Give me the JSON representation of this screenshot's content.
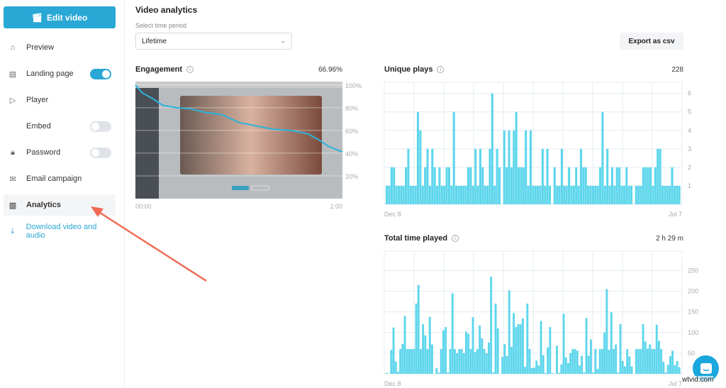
{
  "sidebar": {
    "edit_button": "Edit video",
    "items": [
      {
        "label": "Preview",
        "icon": "home-icon"
      },
      {
        "label": "Landing page",
        "icon": "page-icon",
        "toggle": true
      },
      {
        "label": "Player",
        "icon": "play-icon"
      },
      {
        "label": "Embed",
        "icon": "code-icon",
        "toggle": false
      },
      {
        "label": "Password",
        "icon": "lock-icon",
        "toggle": false
      },
      {
        "label": "Email campaign",
        "icon": "mail-icon"
      },
      {
        "label": "Analytics",
        "icon": "bar-chart-icon",
        "active": true
      }
    ],
    "download": "Download video and audio"
  },
  "main": {
    "title": "Video analytics",
    "period_label": "Select time period",
    "period_value": "Lifetime",
    "export": "Export as csv"
  },
  "colors": {
    "accent": "#29a8d6",
    "bar": "#5dd6ec",
    "line": "#2bb3dc",
    "arrow": "#f06a55"
  },
  "chart_data": [
    {
      "type": "line",
      "title": "Engagement",
      "value": "66.96%",
      "x_ticks": [
        "00:00",
        "1:00"
      ],
      "y_ticks": [
        "100%",
        "80%",
        "60%",
        "40%",
        "20%"
      ],
      "ylim": [
        0,
        103
      ],
      "xlim": [
        0,
        60
      ],
      "x": [
        0,
        2,
        5,
        8,
        12,
        16,
        20,
        25,
        30,
        35,
        40,
        45,
        50,
        53,
        56,
        60
      ],
      "y": [
        100,
        93,
        88,
        82,
        80,
        79,
        76,
        74,
        67,
        64,
        61,
        60,
        57,
        52,
        46,
        41
      ]
    },
    {
      "type": "bar",
      "title": "Unique plays",
      "value": "228",
      "x_ticks": [
        "Dec 8",
        "Jul 7"
      ],
      "y_ticks": [
        1,
        2,
        3,
        4,
        5,
        6
      ],
      "ylim": [
        0,
        6.6
      ],
      "values": [
        1,
        1,
        2,
        2,
        1,
        1,
        1,
        1,
        2,
        3,
        1,
        1,
        1,
        5,
        4,
        1,
        2,
        3,
        1,
        3,
        2,
        1,
        2,
        1,
        1,
        2,
        2,
        1,
        5,
        1,
        1,
        1,
        1,
        1,
        2,
        2,
        1,
        3,
        1,
        3,
        2,
        1,
        1,
        3,
        6,
        1,
        3,
        2,
        0,
        4,
        2,
        4,
        2,
        4,
        5,
        2,
        2,
        2,
        4,
        1,
        4,
        1,
        1,
        1,
        1,
        3,
        1,
        3,
        1,
        0,
        2,
        1,
        1,
        3,
        1,
        1,
        2,
        1,
        1,
        2,
        1,
        3,
        2,
        2,
        1,
        1,
        1,
        1,
        1,
        2,
        5,
        1,
        3,
        1,
        2,
        1,
        2,
        2,
        1,
        1,
        2,
        1,
        1,
        0,
        1,
        1,
        1,
        2,
        2,
        2,
        2,
        1,
        2,
        3,
        3,
        1,
        1,
        1,
        1,
        2,
        1,
        1,
        1
      ]
    },
    {
      "type": "bar",
      "title": "Total time played",
      "value": "2 h 29 m",
      "x_ticks": [
        "Dec 8",
        "Jul 7"
      ],
      "y_ticks": [
        50,
        100,
        150,
        200,
        250
      ],
      "ylim": [
        0,
        297
      ],
      "values": [
        2,
        0,
        58,
        112,
        30,
        5,
        60,
        72,
        140,
        60,
        60,
        60,
        60,
        170,
        215,
        60,
        120,
        93,
        60,
        138,
        71,
        0,
        14,
        3,
        60,
        105,
        113,
        3,
        60,
        195,
        60,
        50,
        60,
        60,
        50,
        102,
        97,
        60,
        137,
        53,
        60,
        117,
        86,
        60,
        50,
        76,
        235,
        3,
        170,
        110,
        0,
        41,
        72,
        43,
        202,
        65,
        147,
        113,
        120,
        120,
        134,
        17,
        170,
        60,
        14,
        15,
        32,
        20,
        128,
        45,
        2,
        64,
        113,
        2,
        0,
        68,
        2,
        23,
        145,
        40,
        26,
        50,
        60,
        60,
        56,
        20,
        44,
        3,
        135,
        44,
        83,
        3,
        60,
        12,
        60,
        60,
        100,
        205,
        58,
        149,
        60,
        71,
        3,
        120,
        31,
        18,
        60,
        42,
        18,
        0,
        60,
        60,
        60,
        120,
        78,
        61,
        71,
        60,
        60,
        119,
        80,
        60,
        29,
        3,
        22,
        43,
        56,
        21,
        31,
        16
      ]
    }
  ],
  "watermark": "wtvid.com"
}
